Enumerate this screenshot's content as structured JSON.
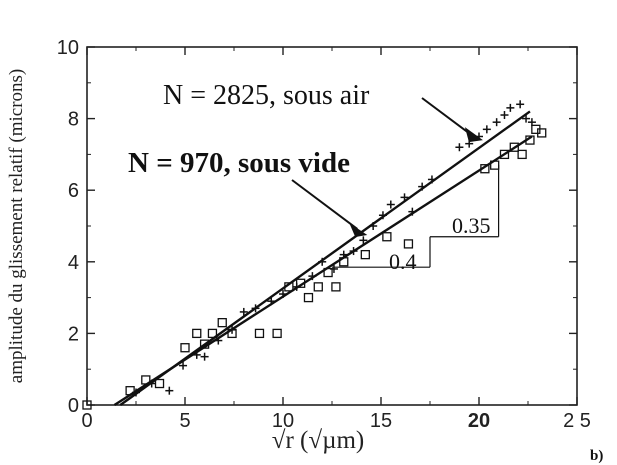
{
  "chart_data": {
    "type": "scatter",
    "xlabel": "√r (√µm)",
    "ylabel": "amplitude du glissement relatif (microns)",
    "xlim": [
      0,
      25
    ],
    "ylim": [
      0,
      10
    ],
    "xticks": [
      {
        "value": 0,
        "label": "0"
      },
      {
        "value": 5,
        "label": "5"
      },
      {
        "value": 10,
        "label": "10"
      },
      {
        "value": 15,
        "label": "15"
      },
      {
        "value": 20,
        "label": "20",
        "bold": true
      },
      {
        "value": 25,
        "label": "2 5"
      }
    ],
    "yticks": [
      {
        "value": 0,
        "label": "0"
      },
      {
        "value": 2,
        "label": "2"
      },
      {
        "value": 4,
        "label": "4"
      },
      {
        "value": 6,
        "label": "6"
      },
      {
        "value": 8,
        "label": "8"
      },
      {
        "value": 10,
        "label": "10"
      }
    ],
    "grid": false,
    "series": [
      {
        "name": "N = 2825, sous air",
        "marker": "plus",
        "points": [
          [
            2.5,
            0.35
          ],
          [
            3.3,
            0.6
          ],
          [
            4.2,
            0.4
          ],
          [
            4.9,
            1.1
          ],
          [
            5.6,
            1.4
          ],
          [
            6.0,
            1.35
          ],
          [
            6.7,
            1.8
          ],
          [
            7.4,
            2.1
          ],
          [
            8.0,
            2.6
          ],
          [
            8.6,
            2.7
          ],
          [
            9.4,
            2.9
          ],
          [
            10.0,
            3.1
          ],
          [
            10.7,
            3.3
          ],
          [
            11.5,
            3.6
          ],
          [
            12.0,
            4.0
          ],
          [
            12.6,
            3.8
          ],
          [
            13.1,
            4.2
          ],
          [
            13.6,
            4.3
          ],
          [
            14.1,
            4.6
          ],
          [
            14.6,
            5.0
          ],
          [
            15.1,
            5.3
          ],
          [
            15.5,
            5.6
          ],
          [
            16.2,
            5.8
          ],
          [
            16.6,
            5.4
          ],
          [
            17.1,
            6.1
          ],
          [
            17.6,
            6.3
          ],
          [
            19.0,
            7.2
          ],
          [
            19.5,
            7.3
          ],
          [
            20.0,
            7.5
          ],
          [
            20.4,
            7.7
          ],
          [
            20.9,
            7.9
          ],
          [
            21.3,
            8.1
          ],
          [
            21.6,
            8.3
          ],
          [
            22.1,
            8.4
          ],
          [
            22.4,
            8.0
          ],
          [
            22.7,
            7.9
          ]
        ]
      },
      {
        "name": "N = 970, sous vide",
        "marker": "square",
        "points": [
          [
            0,
            0
          ],
          [
            2.2,
            0.4
          ],
          [
            3.0,
            0.7
          ],
          [
            3.7,
            0.6
          ],
          [
            5.0,
            1.6
          ],
          [
            5.6,
            2.0
          ],
          [
            6.0,
            1.7
          ],
          [
            6.4,
            2.0
          ],
          [
            6.9,
            2.3
          ],
          [
            7.4,
            2.0
          ],
          [
            8.8,
            2.0
          ],
          [
            9.7,
            2.0
          ],
          [
            10.3,
            3.3
          ],
          [
            10.9,
            3.4
          ],
          [
            11.3,
            3.0
          ],
          [
            11.8,
            3.3
          ],
          [
            12.3,
            3.7
          ],
          [
            12.7,
            3.3
          ],
          [
            13.1,
            4.0
          ],
          [
            14.2,
            4.2
          ],
          [
            15.3,
            4.7
          ],
          [
            16.4,
            4.5
          ],
          [
            20.3,
            6.6
          ],
          [
            20.8,
            6.7
          ],
          [
            21.3,
            7.0
          ],
          [
            21.8,
            7.2
          ],
          [
            22.2,
            7.0
          ],
          [
            22.6,
            7.4
          ],
          [
            22.9,
            7.7
          ],
          [
            23.2,
            7.6
          ]
        ]
      }
    ],
    "fit_lines": [
      {
        "series": "N = 2825, sous air",
        "x": [
          1.7,
          22.6
        ],
        "y": [
          0,
          8.2
        ]
      },
      {
        "series": "N = 970, sous vide",
        "x": [
          1.4,
          22.7
        ],
        "y": [
          0,
          7.5
        ]
      }
    ],
    "annotations": [
      {
        "text": "N = 2825, sous air",
        "arrow_to": [
          20.2,
          7.4
        ]
      },
      {
        "text": "N = 970, sous vide",
        "arrow_to": [
          14.3,
          4.75
        ]
      },
      {
        "text": "0.35",
        "slope_triangle": {
          "x": [
            17.5,
            21.0
          ],
          "y": [
            4.7,
            6.7
          ]
        }
      },
      {
        "text": "0.4",
        "slope_triangle": {
          "x": [
            12.5,
            17.5
          ],
          "y": [
            3.85,
            4.7
          ]
        }
      }
    ],
    "corner_label": "b)"
  }
}
